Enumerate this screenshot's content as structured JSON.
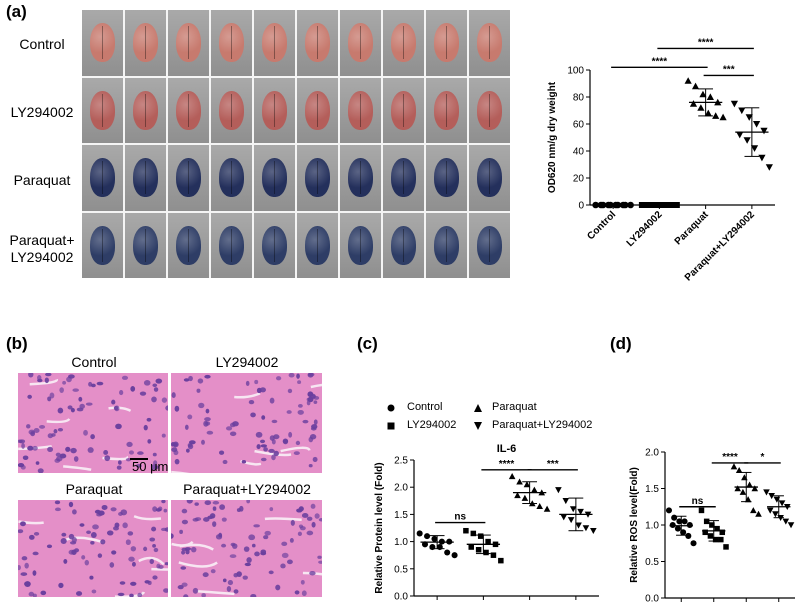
{
  "panels": {
    "a": "(a)",
    "b": "(b)",
    "c": "(c)",
    "d": "(d)"
  },
  "panel_a": {
    "row_labels": [
      "Control",
      "LY294002",
      "Paraquat",
      "Paraquat+\nLY294002"
    ],
    "row_colors": [
      "#c77a6e",
      "#b45e5a",
      "#24305c",
      "#2e3d66"
    ],
    "columns": 10
  },
  "panel_b": {
    "titles": [
      "Control",
      "LY294002",
      "Paraquat",
      "Paraquat+LY294002"
    ],
    "scale_bar": "50 μm",
    "tissue_color": "#e48fc8",
    "nuclei_color": "#6a3f9e"
  },
  "legend": {
    "items": [
      {
        "label": "Control",
        "marker": "circle"
      },
      {
        "label": "Paraquat",
        "marker": "triangle-up"
      },
      {
        "label": "LY294002",
        "marker": "square"
      },
      {
        "label": "Paraquat+LY294002",
        "marker": "triangle-down"
      }
    ]
  },
  "chart_data": [
    {
      "id": "a",
      "type": "scatter",
      "title": "",
      "categories": [
        "Control",
        "LY294002",
        "Paraquat",
        "Paraquat+LY294002"
      ],
      "ylabel": "OD620 nm/g dry weight",
      "ylim": [
        0,
        100
      ],
      "yticks": [
        0,
        20,
        40,
        60,
        80,
        100
      ],
      "markers": [
        "circle",
        "square",
        "triangle-up",
        "triangle-down"
      ],
      "groups": [
        {
          "values": [
            0,
            0,
            0,
            0,
            0,
            0,
            0,
            0,
            0,
            0
          ],
          "mean": 0,
          "sd": 0
        },
        {
          "values": [
            0,
            0,
            0,
            0,
            0,
            0,
            0,
            0,
            0,
            0
          ],
          "mean": 0,
          "sd": 0
        },
        {
          "values": [
            92,
            88,
            82,
            80,
            76,
            75,
            72,
            68,
            66,
            65
          ],
          "mean": 76,
          "sd": 10
        },
        {
          "values": [
            75,
            70,
            65,
            60,
            55,
            52,
            48,
            42,
            35,
            28
          ],
          "mean": 54,
          "sd": 18
        }
      ],
      "significance": [
        {
          "from": 0,
          "to": 2,
          "label": "****",
          "y": 102
        },
        {
          "from": 1,
          "to": 3,
          "label": "****",
          "y": 116
        },
        {
          "from": 2,
          "to": 3,
          "label": "***",
          "y": 96
        }
      ]
    },
    {
      "id": "c",
      "type": "scatter",
      "title": "IL-6",
      "categories": [
        "Control",
        "LY294002",
        "Paraquat",
        "Paraquat+LY294002"
      ],
      "ylabel": "Relative Protein level (Fold)",
      "ylim": [
        0,
        2.5
      ],
      "yticks": [
        0.0,
        0.5,
        1.0,
        1.5,
        2.0,
        2.5
      ],
      "markers": [
        "circle",
        "square",
        "triangle-up",
        "triangle-down"
      ],
      "groups": [
        {
          "values": [
            1.15,
            1.1,
            1.05,
            1.0,
            1.0,
            0.95,
            0.9,
            0.9,
            0.8,
            0.75
          ],
          "mean": 0.99,
          "sd": 0.12
        },
        {
          "values": [
            1.2,
            1.15,
            1.1,
            1.0,
            0.95,
            0.9,
            0.85,
            0.8,
            0.75,
            0.65
          ],
          "mean": 0.95,
          "sd": 0.17
        },
        {
          "values": [
            2.2,
            2.1,
            2.05,
            1.95,
            1.9,
            1.85,
            1.8,
            1.7,
            1.65,
            1.6
          ],
          "mean": 1.9,
          "sd": 0.2
        },
        {
          "values": [
            1.95,
            1.75,
            1.6,
            1.55,
            1.5,
            1.45,
            1.4,
            1.3,
            1.25,
            1.2
          ],
          "mean": 1.5,
          "sd": 0.3
        }
      ],
      "significance": [
        {
          "from": 0,
          "to": 1,
          "label": "ns",
          "y": 1.35
        },
        {
          "from": 1,
          "to": 2,
          "label": "****",
          "y": 2.32
        },
        {
          "from": 2,
          "to": 3,
          "label": "***",
          "y": 2.32
        }
      ]
    },
    {
      "id": "d",
      "type": "scatter",
      "title": "",
      "categories": [
        "Control",
        "LY294002",
        "Paraquat",
        "Paraquat+LY294002"
      ],
      "ylabel": "Relative ROS level(Fold)",
      "ylim": [
        0,
        2.0
      ],
      "yticks": [
        0.0,
        0.5,
        1.0,
        1.5,
        2.0
      ],
      "markers": [
        "circle",
        "square",
        "triangle-up",
        "triangle-down"
      ],
      "groups": [
        {
          "values": [
            1.2,
            1.1,
            1.05,
            1.05,
            1.0,
            1.0,
            0.95,
            0.9,
            0.85,
            0.75
          ],
          "mean": 0.99,
          "sd": 0.13
        },
        {
          "values": [
            1.2,
            1.05,
            1.0,
            0.95,
            0.9,
            0.9,
            0.85,
            0.8,
            0.8,
            0.7
          ],
          "mean": 0.92,
          "sd": 0.14
        },
        {
          "values": [
            1.8,
            1.75,
            1.65,
            1.55,
            1.5,
            1.5,
            1.45,
            1.35,
            1.2,
            1.15
          ],
          "mean": 1.52,
          "sd": 0.2
        },
        {
          "values": [
            1.45,
            1.4,
            1.35,
            1.3,
            1.25,
            1.2,
            1.15,
            1.1,
            1.05,
            1.0
          ],
          "mean": 1.25,
          "sd": 0.15
        }
      ],
      "significance": [
        {
          "from": 0,
          "to": 1,
          "label": "ns",
          "y": 1.25
        },
        {
          "from": 1,
          "to": 2,
          "label": "****",
          "y": 1.85
        },
        {
          "from": 2,
          "to": 3,
          "label": "*",
          "y": 1.85
        }
      ]
    }
  ]
}
